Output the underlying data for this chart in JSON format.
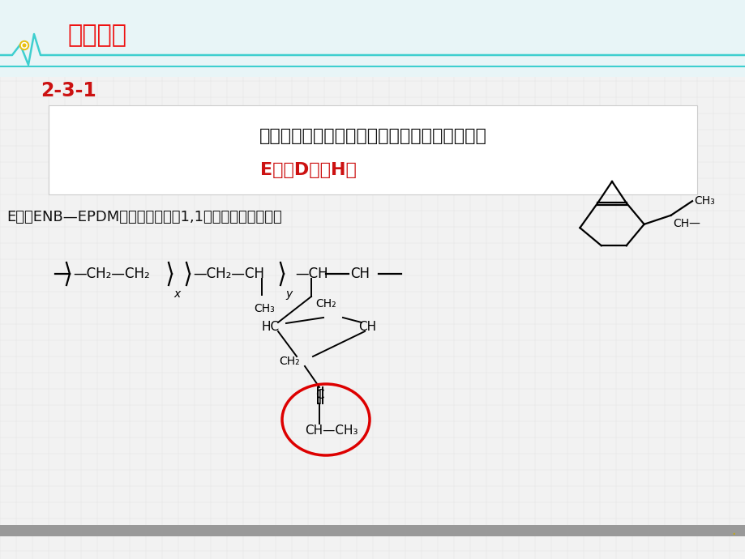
{
  "bg_color": "#f2f2f2",
  "header_bg": "#e8f5f7",
  "title_text": "【解析】",
  "title_color": "#ee1111",
  "subtitle_text": "2-3-1",
  "subtitle_color": "#cc1111",
  "ecg_color": "#3ecfcf",
  "main_text_line1": "依据第三单体种类的不同，三元乙丙橡胶又有：",
  "main_text_line2": "E型、D型、H型",
  "main_text_color": "#111111",
  "main_text_red": "#cc1111",
  "desc_text": "E型（ENB—EPDM），第三单体为1,1－亚乙基降冰片烯：",
  "desc_color": "#111111",
  "bottom_bar_color": "#999999",
  "dot_color": "#e8c010",
  "panel_bg": "#ffffff",
  "grid_color": "#e2e2e2"
}
